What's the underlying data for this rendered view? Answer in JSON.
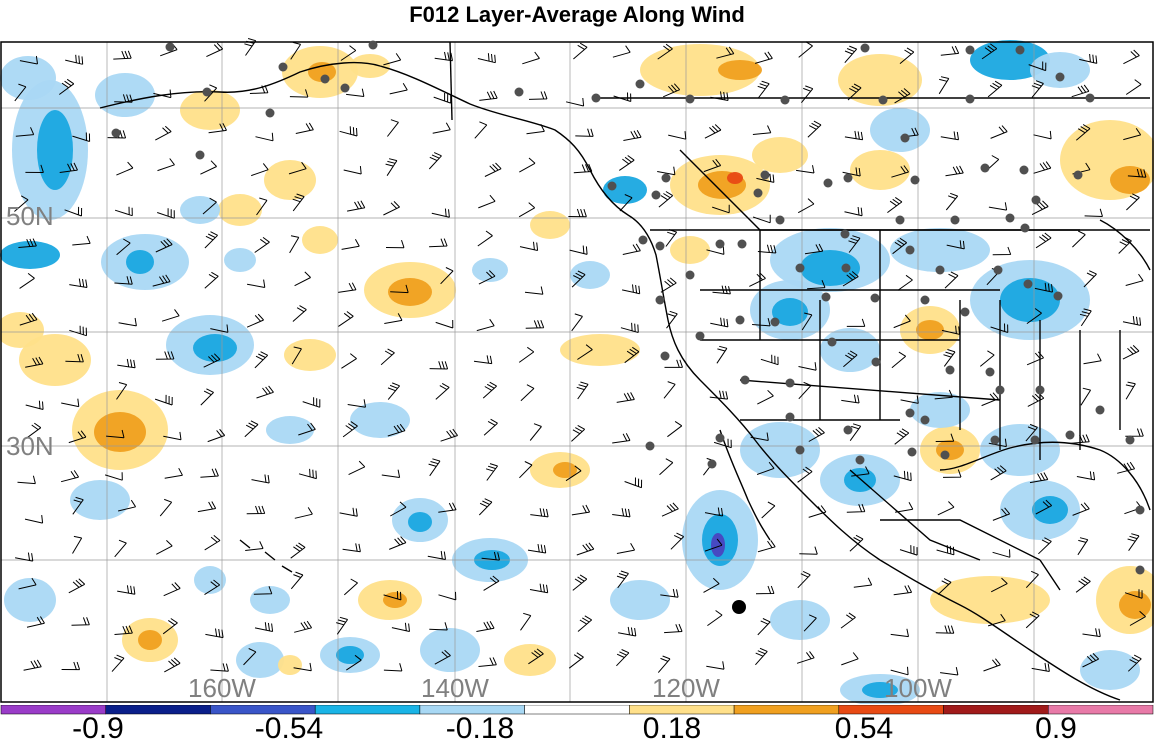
{
  "title": "F012 Layer-Average Along Wind",
  "lat_labels": [
    "50N",
    "30N"
  ],
  "lon_labels": [
    "160W",
    "140W",
    "120W",
    "100W"
  ],
  "colorbar": {
    "labels": [
      "-0.9",
      "-0.54",
      "-0.18",
      "0.18",
      "0.54",
      "0.9"
    ],
    "colors": [
      "#9a3cc8",
      "#0a1f8a",
      "#3a55c8",
      "#1ab4e6",
      "#a8d8f4",
      "#ffffff",
      "#ffe08a",
      "#f0a020",
      "#e84a14",
      "#a01a1a",
      "#e87aa8"
    ]
  },
  "palette": {
    "light_blue": "#aad8f4",
    "mid_blue": "#1aa8e0",
    "dark_blue": "#4a44c0",
    "yellow": "#ffe08a",
    "orange": "#f0a020",
    "red": "#e84a14",
    "station": "#505050",
    "grid": "#9a9a9a"
  }
}
